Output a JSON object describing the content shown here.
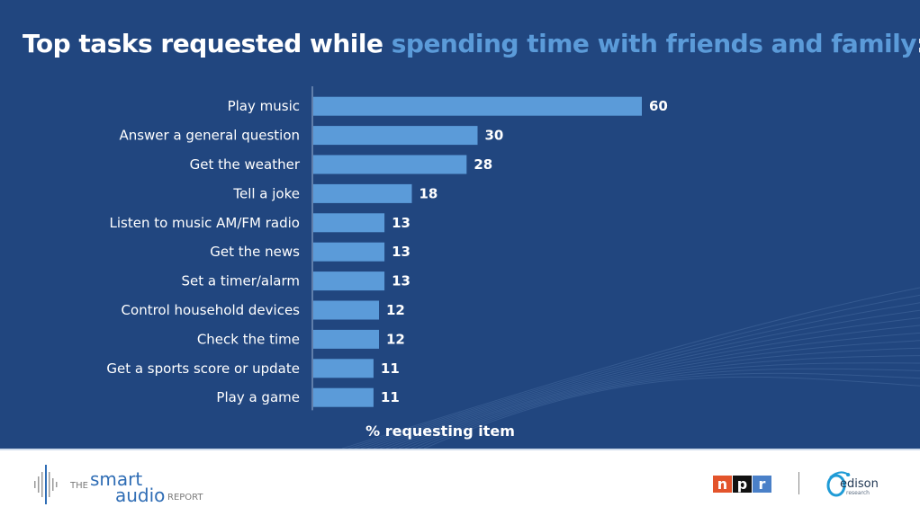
{
  "title": {
    "part1": "Top tasks requested while ",
    "part2": "spending time with friends and family",
    "part3": ":"
  },
  "colors": {
    "background": "#21467f",
    "bar": "#5b9bd9",
    "title_highlight": "#5b9bd9",
    "text": "#ffffff"
  },
  "chart_data": {
    "type": "bar",
    "orientation": "horizontal",
    "title": "Top tasks requested while spending time with friends and family:",
    "xlabel": "% requesting item",
    "ylabel": "",
    "xlim": [
      0,
      60
    ],
    "grid": false,
    "categories": [
      "Play music",
      "Answer a general question",
      "Get the weather",
      "Tell a joke",
      "Listen to music AM/FM radio",
      "Get the news",
      "Set a timer/alarm",
      "Control household devices",
      "Check the time",
      "Get a sports score or update",
      "Play a game"
    ],
    "values": [
      60,
      30,
      28,
      18,
      13,
      13,
      13,
      12,
      12,
      11,
      11
    ]
  },
  "footer": {
    "logo_left": {
      "the": "THE",
      "smart": "smart",
      "audio": "audio",
      "report": "REPORT"
    },
    "logo_npr": [
      "n",
      "p",
      "r"
    ],
    "logo_edison": {
      "name": "edison",
      "sub": "research"
    }
  }
}
